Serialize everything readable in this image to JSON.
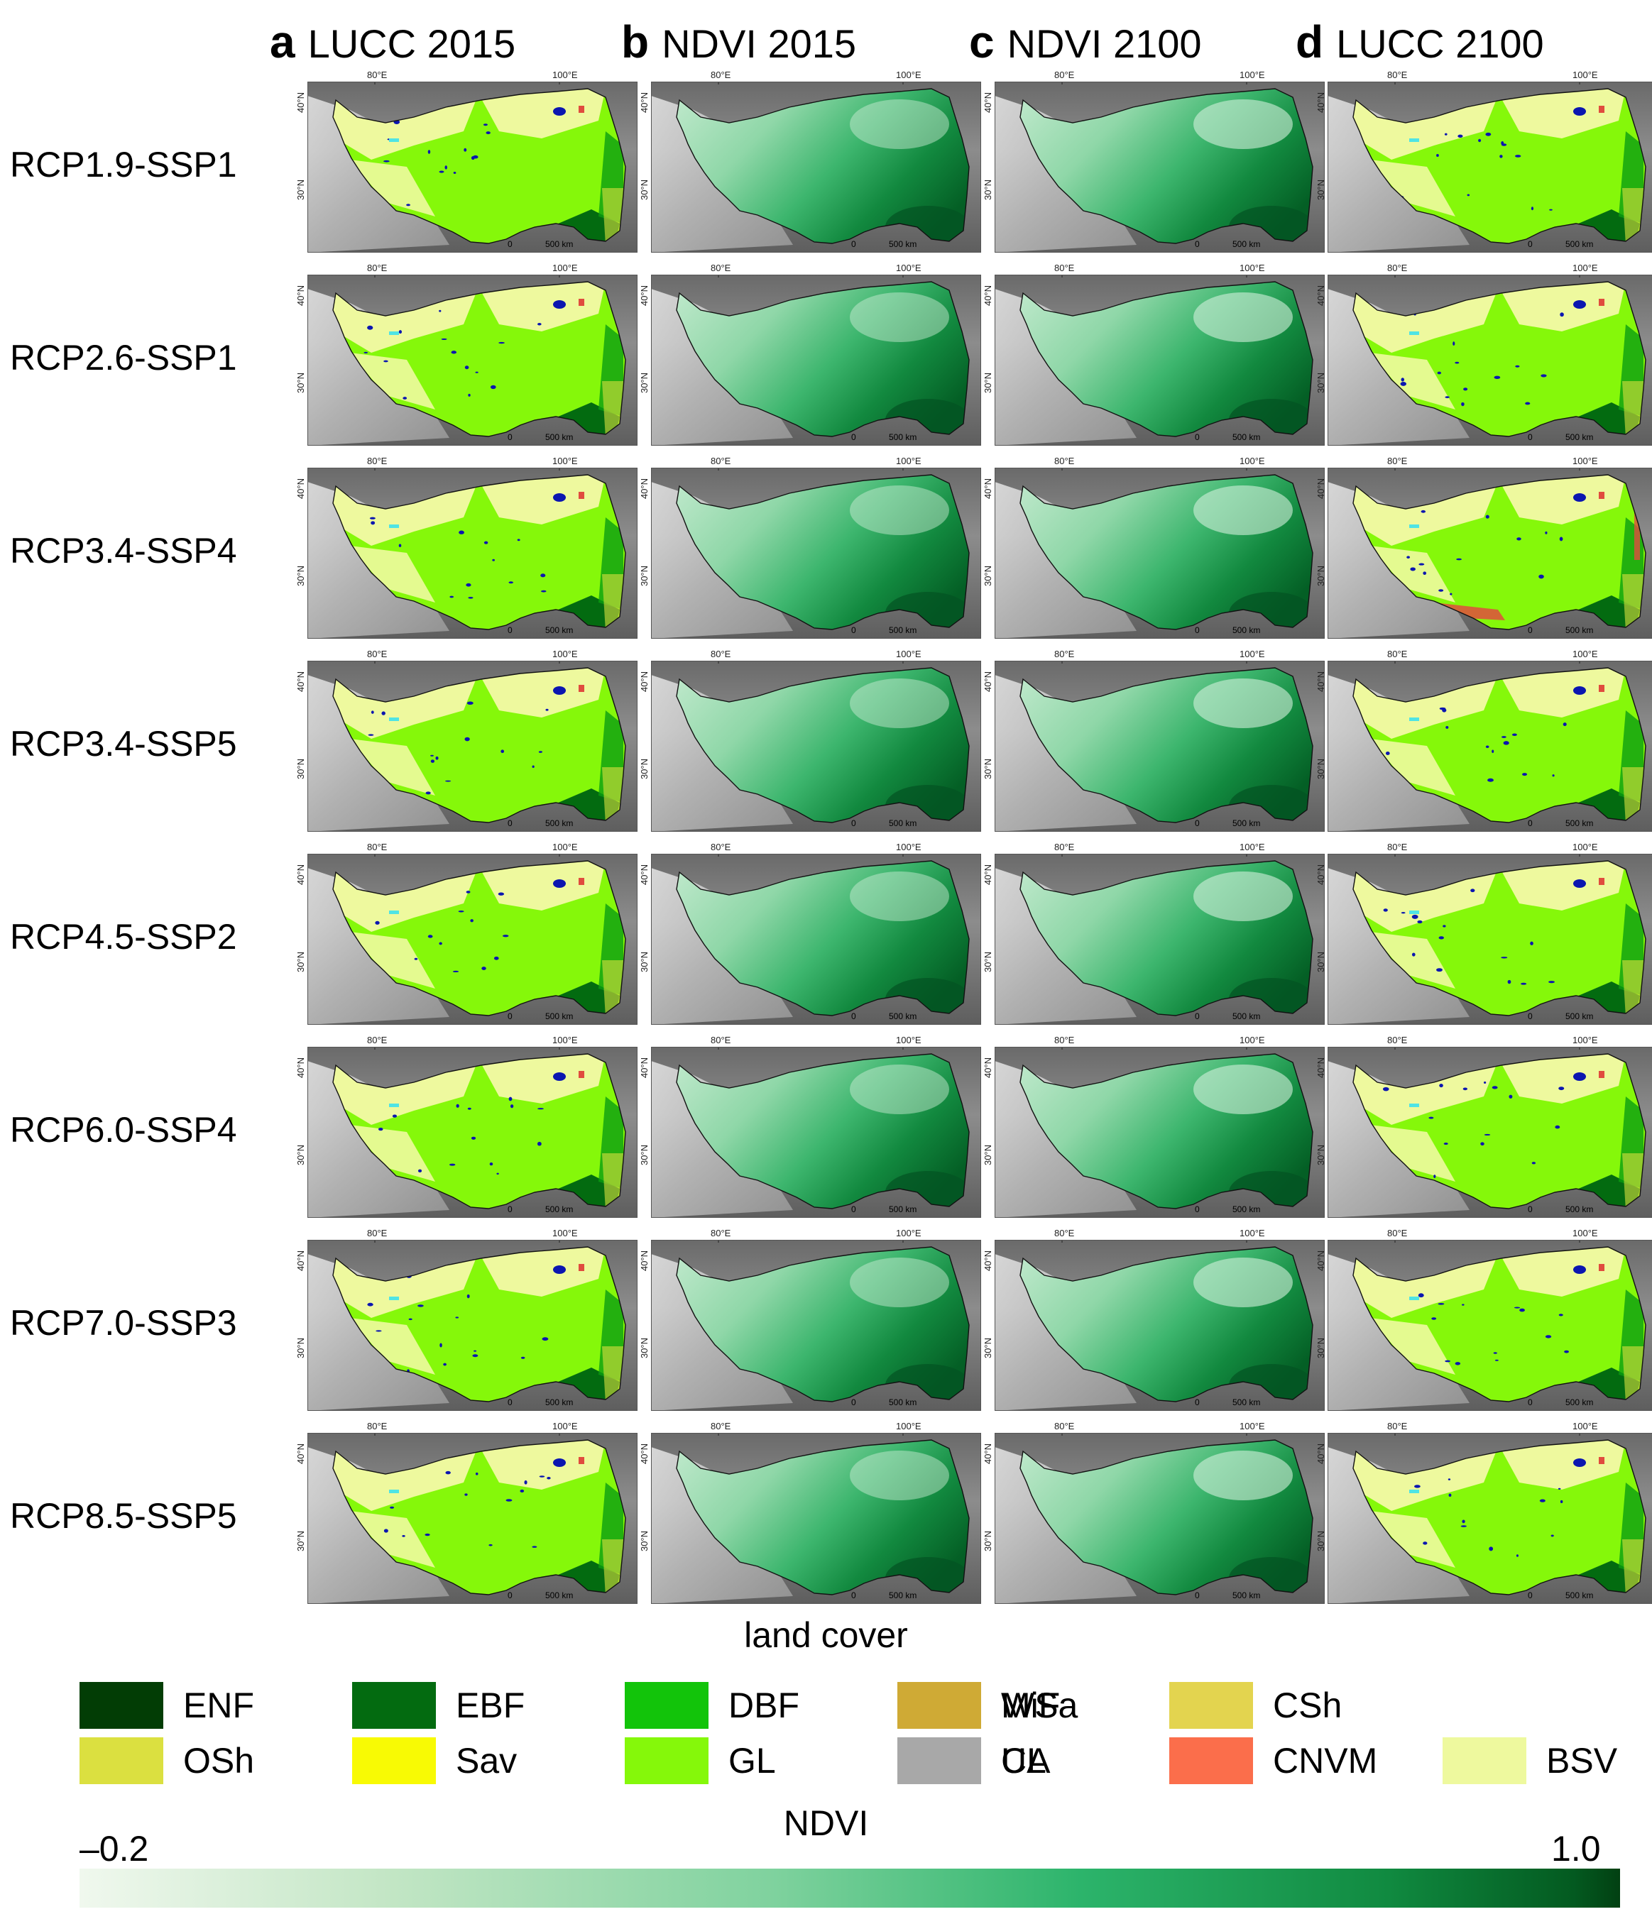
{
  "columns": [
    {
      "letter": "a",
      "title": "LUCC 2015",
      "kind": "lucc",
      "future": false
    },
    {
      "letter": "b",
      "title": "NDVI 2015",
      "kind": "ndvi",
      "future": false
    },
    {
      "letter": "c",
      "title": "NDVI 2100",
      "kind": "ndvi",
      "future": true
    },
    {
      "letter": "d",
      "title": "LUCC 2100",
      "kind": "lucc",
      "future": true
    }
  ],
  "rows": [
    "RCP1.9-SSP1",
    "RCP2.6-SSP1",
    "RCP3.4-SSP4",
    "RCP3.4-SSP5",
    "RCP4.5-SSP2",
    "RCP6.0-SSP4",
    "RCP7.0-SSP3",
    "RCP8.5-SSP5"
  ],
  "map_axes": {
    "x_ticks": [
      "80°E",
      "100°E"
    ],
    "y_ticks": [
      "40°N",
      "30°N"
    ],
    "scale_zero": "0",
    "scale_label": "500 km"
  },
  "land_cover_title": "land cover",
  "legend": [
    {
      "code": "ENF",
      "color": "#023d05"
    },
    {
      "code": "EBF",
      "color": "#036b10"
    },
    {
      "code": "DBF",
      "color": "#12c40a"
    },
    {
      "code": "MiF",
      "color": "#0a9e10"
    },
    {
      "code": "WSa",
      "color": "#cfaa35"
    },
    {
      "code": "CSh",
      "color": "#e3d44f"
    },
    {
      "code": "OSh",
      "color": "#dbe040"
    },
    {
      "code": "Sav",
      "color": "#f8fa04"
    },
    {
      "code": "GL",
      "color": "#85f80a"
    },
    {
      "code": "CL",
      "color": "#e04c3e"
    },
    {
      "code": "UA",
      "color": "#a8a8a8"
    },
    {
      "code": "CNVM",
      "color": "#fb6e4b"
    },
    {
      "code": "BSV",
      "color": "#eef99e"
    }
  ],
  "ndvi_title": "NDVI",
  "ndvi_min": "–0.2",
  "ndvi_max": "1.0"
}
